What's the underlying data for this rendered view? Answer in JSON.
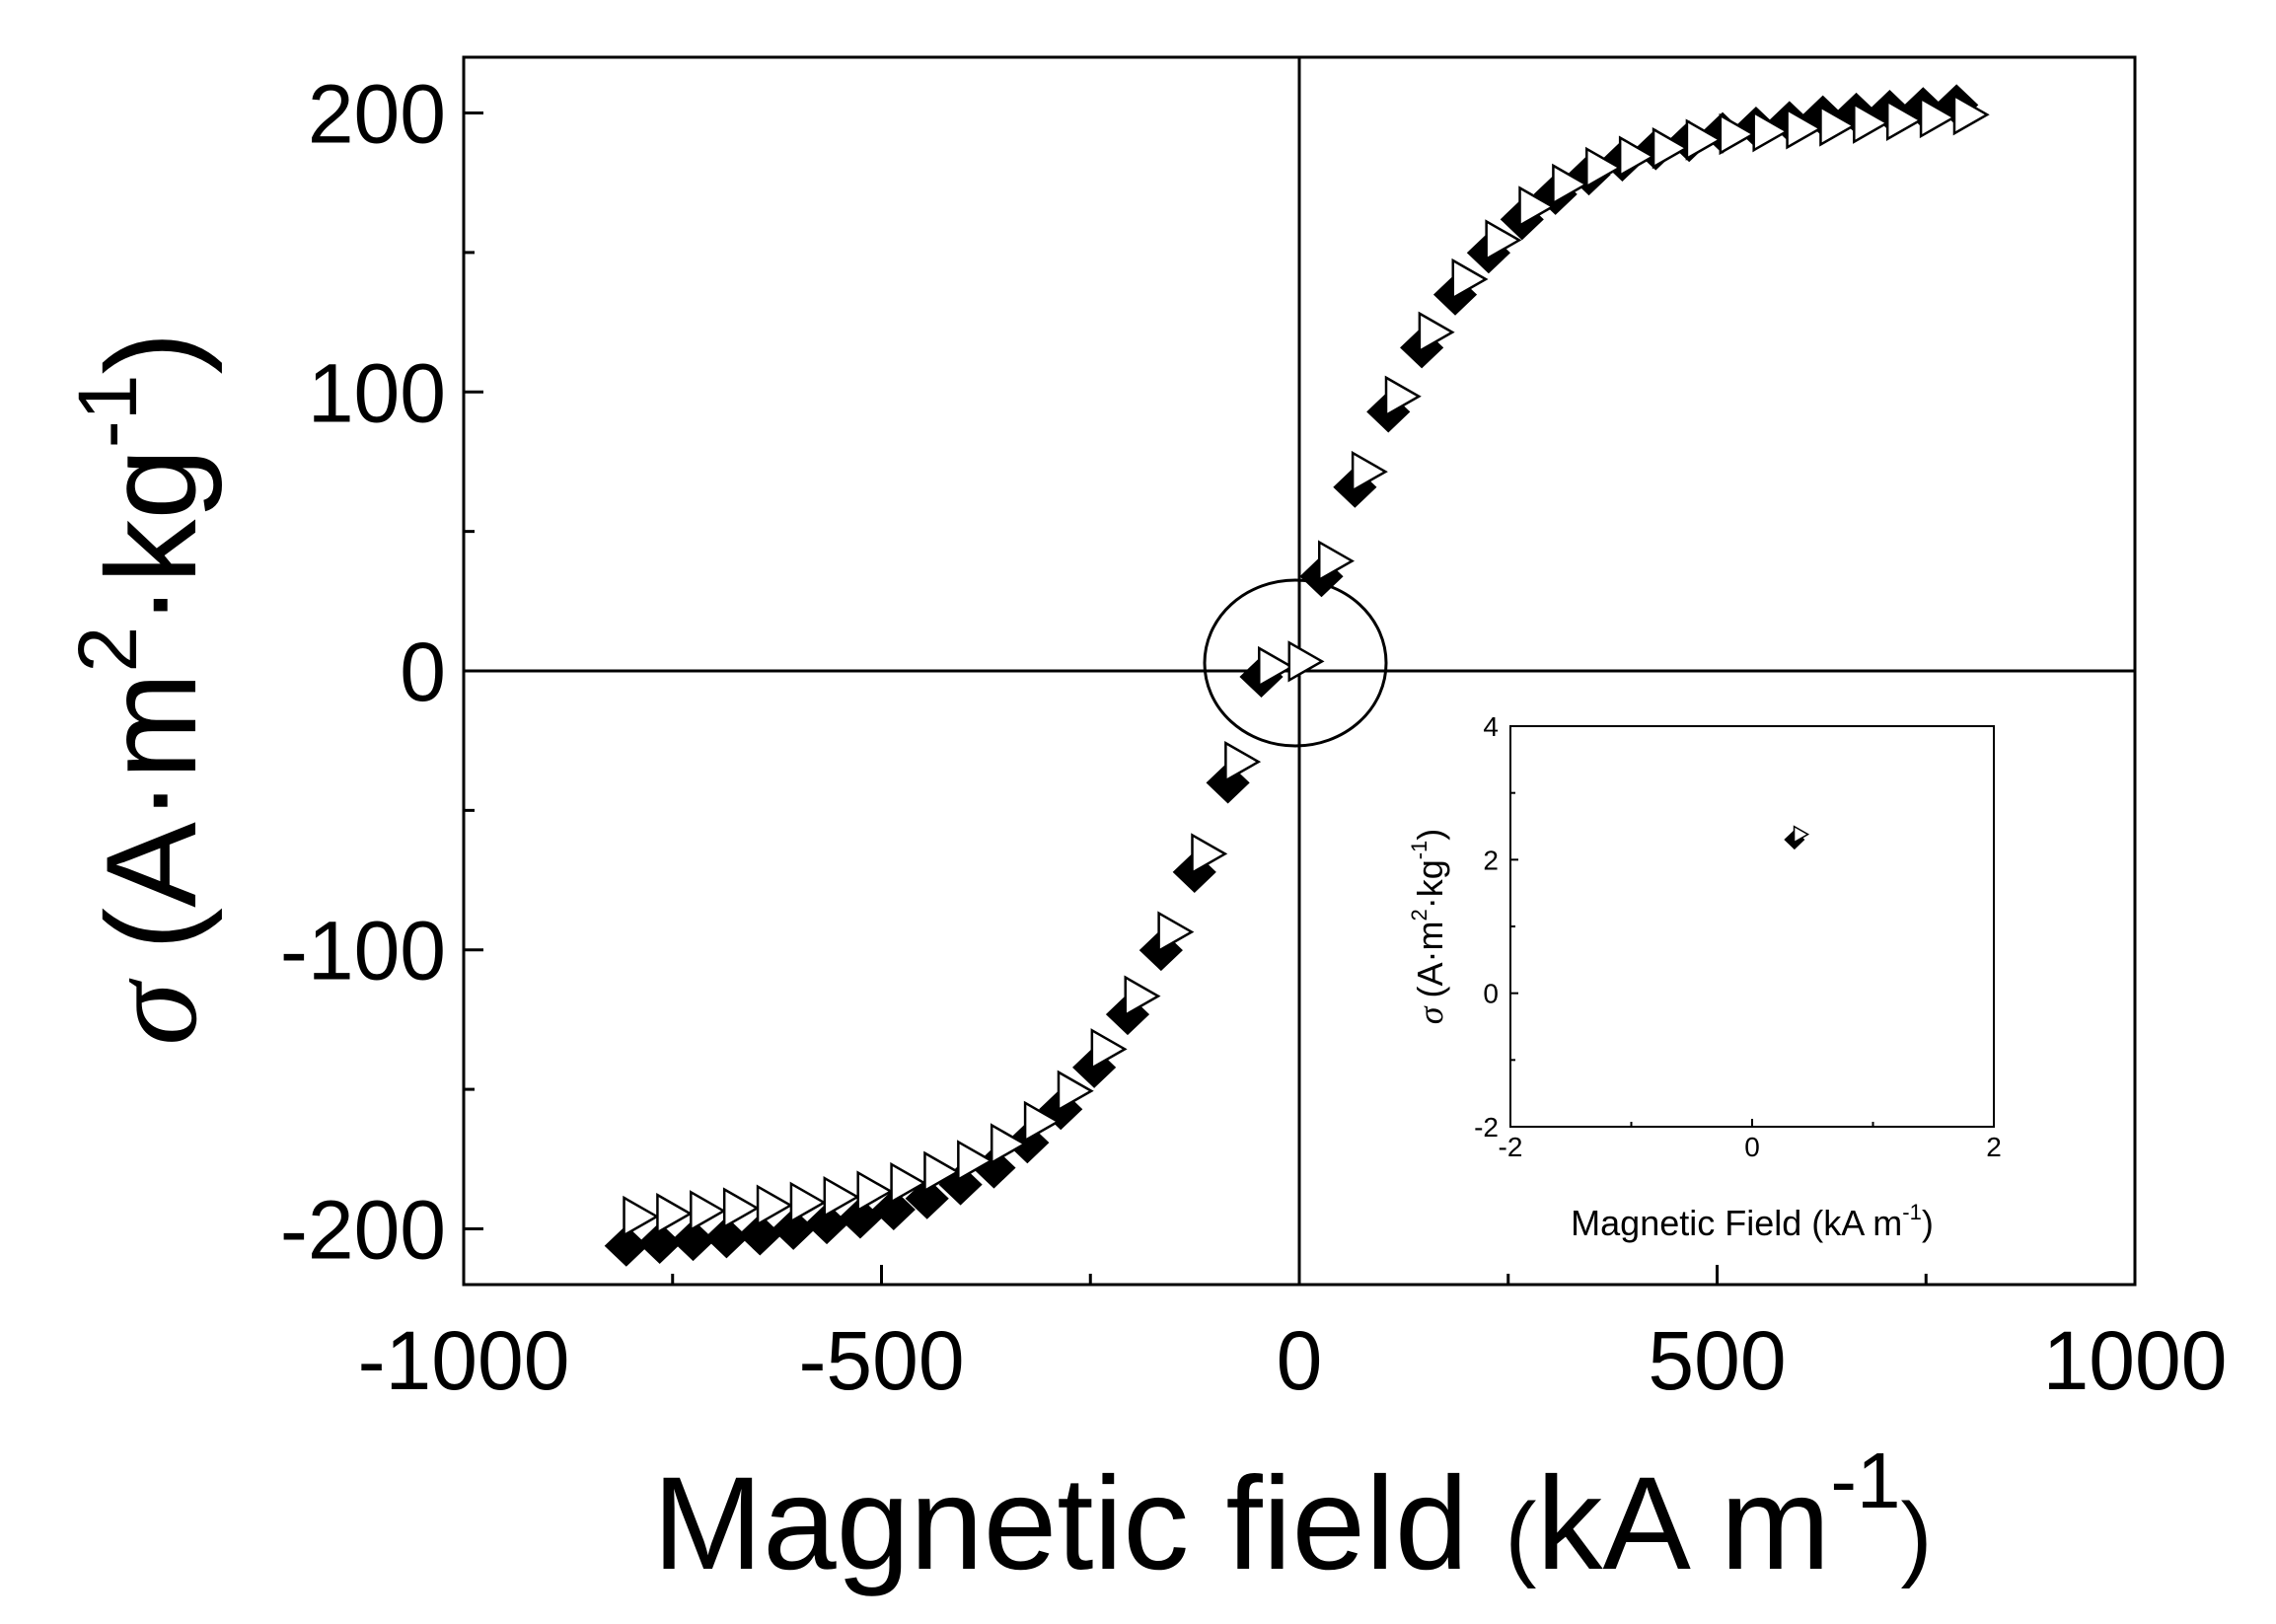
{
  "chart_data": [
    {
      "id": "main",
      "type": "scatter",
      "title": "",
      "xlabel": "Magnetic field",
      "xlabel_unit": "kA m",
      "xlabel_unit_sup": "-1",
      "ylabel_sigma": "σ",
      "ylabel_unit_a": "A·m",
      "ylabel_unit_sup2": "2",
      "ylabel_unit_b": "·kg",
      "ylabel_unit_sup_b": "-1",
      "xlim": [
        -1000,
        1000
      ],
      "ylim": [
        -220,
        220
      ],
      "xticks": [
        -1000,
        -500,
        0,
        500,
        1000
      ],
      "xtick_labels": [
        "-1000",
        "-500",
        "0",
        "500",
        "1000"
      ],
      "yticks": [
        -200,
        -100,
        0,
        100,
        200
      ],
      "ytick_labels": [
        "-200",
        "-100",
        "0",
        "100",
        "200"
      ],
      "legend": "none",
      "grid": false,
      "annotation": "circle around origin",
      "series": [
        {
          "name": "filled diamonds",
          "marker": "diamond-filled",
          "x": [
            -796,
            -756,
            -716,
            -676,
            -636,
            -596,
            -556,
            -516,
            -476,
            -436,
            -396,
            -356,
            -316,
            -276,
            -236,
            -196,
            -156,
            -116,
            -76,
            -36,
            36,
            76,
            116,
            156,
            196,
            236,
            276,
            316,
            356,
            396,
            436,
            476,
            516,
            556,
            596,
            636,
            676,
            716,
            756,
            796
          ],
          "y": [
            -204,
            -203,
            -202,
            -201,
            -200,
            -198,
            -196,
            -194,
            -191,
            -187,
            -182,
            -176,
            -167,
            -155,
            -140,
            -121,
            -98,
            -70,
            -38,
            0,
            36,
            68,
            95,
            118,
            137,
            152,
            164,
            173,
            180,
            185,
            189,
            192,
            195,
            197,
            199,
            201,
            202,
            203,
            204,
            205
          ]
        },
        {
          "name": "open triangles",
          "marker": "triangle-right-open",
          "x": [
            -796,
            -756,
            -716,
            -676,
            -636,
            -596,
            -556,
            -516,
            -476,
            -436,
            -396,
            -356,
            -316,
            -276,
            -236,
            -196,
            -156,
            -116,
            -76,
            -36,
            0,
            36,
            76,
            116,
            156,
            196,
            236,
            276,
            316,
            356,
            396,
            436,
            476,
            516,
            556,
            596,
            636,
            676,
            716,
            756,
            796
          ],
          "y": [
            -197,
            -196,
            -195,
            -194,
            -193,
            -192,
            -190,
            -188,
            -185,
            -181,
            -177,
            -171,
            -163,
            -152,
            -137,
            -118,
            -95,
            -67,
            -34,
            0,
            2,
            38,
            70,
            97,
            120,
            139,
            153,
            165,
            173,
            179,
            183,
            186,
            189,
            191,
            192,
            193,
            194,
            195,
            196,
            197,
            198
          ]
        }
      ]
    },
    {
      "id": "inset",
      "type": "scatter",
      "title": "",
      "xlabel": "Magnetic Field",
      "xlabel_unit": "kA m",
      "xlabel_unit_sup": "-1",
      "ylabel_sigma": "σ",
      "ylabel_unit_a": "A·m",
      "ylabel_unit_sup2": "2",
      "ylabel_unit_b": "·kg",
      "ylabel_unit_sup_b": "-1",
      "xlim": [
        -2,
        2
      ],
      "ylim": [
        -2,
        4
      ],
      "xticks": [
        -2,
        0,
        2
      ],
      "xtick_labels": [
        "-2",
        "0",
        "2"
      ],
      "yticks": [
        -2,
        0,
        2,
        4
      ],
      "ytick_labels": [
        "-2",
        "0",
        "2",
        "4"
      ],
      "legend": "none",
      "grid": false,
      "series": [
        {
          "name": "filled diamonds",
          "marker": "diamond-filled",
          "x": [
            0.35
          ],
          "y": [
            2.3
          ]
        },
        {
          "name": "open triangles",
          "marker": "triangle-right-open",
          "x": [
            0.38
          ],
          "y": [
            2.35
          ]
        }
      ]
    }
  ]
}
